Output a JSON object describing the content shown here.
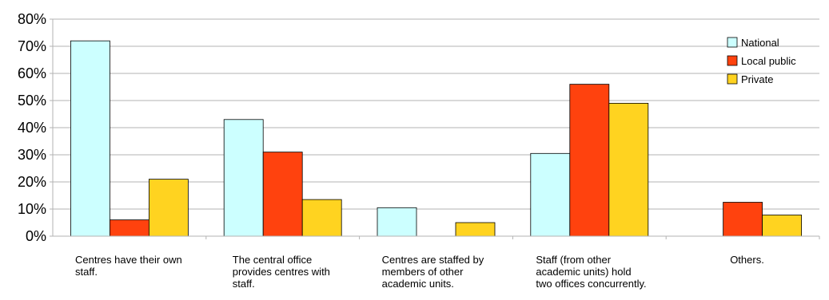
{
  "chart_data": {
    "type": "bar",
    "title": "",
    "xlabel": "",
    "ylabel": "",
    "ylim": [
      0,
      0.8
    ],
    "yticks": [
      "0%",
      "10%",
      "20%",
      "30%",
      "40%",
      "50%",
      "60%",
      "70%",
      "80%"
    ],
    "grid": true,
    "legend_position": "top-right",
    "categories": [
      "Centres have their own staff.",
      "The central office provides centres with staff.",
      "Centres are staffed by members of other academic units.",
      "Staff (from other academic units) hold two offices concurrently.",
      "Others."
    ],
    "series": [
      {
        "name": "National",
        "color": "#ccffff",
        "values": [
          0.72,
          0.43,
          0.105,
          0.305,
          0.0
        ]
      },
      {
        "name": "Local public",
        "color": "#ff420e",
        "values": [
          0.06,
          0.31,
          0.0,
          0.56,
          0.125
        ]
      },
      {
        "name": "Private",
        "color": "#ffd320",
        "values": [
          0.21,
          0.135,
          0.05,
          0.49,
          0.078
        ]
      }
    ]
  }
}
